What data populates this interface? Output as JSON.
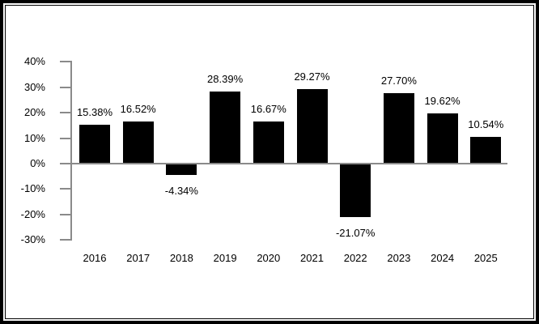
{
  "chart_data": {
    "type": "bar",
    "title": "",
    "xlabel": "",
    "ylabel": "",
    "categories": [
      "2016",
      "2017",
      "2018",
      "2019",
      "2020",
      "2021",
      "2022",
      "2023",
      "2024",
      "2025"
    ],
    "values": [
      15.38,
      16.52,
      -4.34,
      28.39,
      16.67,
      29.27,
      -21.07,
      27.7,
      19.62,
      10.54
    ],
    "value_labels": [
      "15.38%",
      "16.52%",
      "-4.34%",
      "28.39%",
      "16.67%",
      "29.27%",
      "-21.07%",
      "27.70%",
      "19.62%",
      "10.54%"
    ],
    "y_ticks": [
      "40%",
      "30%",
      "20%",
      "10%",
      "0%",
      "-10%",
      "-20%",
      "-30%"
    ],
    "y_tick_values": [
      40,
      30,
      20,
      10,
      0,
      -10,
      -20,
      -30
    ],
    "ylim": [
      -30,
      40
    ],
    "zero_baseline": true,
    "grid": false,
    "legend": false,
    "bar_color": "#000000",
    "axis_color": "#8a8a8a",
    "text_color": "#000000",
    "background_color": "#ffffff",
    "border_color": "#000000"
  }
}
